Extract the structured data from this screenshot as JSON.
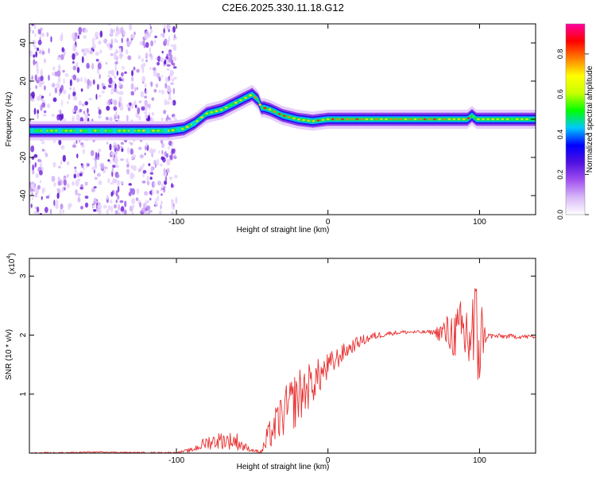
{
  "title": "C2E6.2025.330.11.18.G12",
  "chart_data": [
    {
      "type": "heatmap",
      "name": "spectrogram",
      "xlabel": "Height of straight line (km)",
      "ylabel": "Frequency (Hz)",
      "xlim": [
        -197,
        137
      ],
      "ylim": [
        -50,
        50
      ],
      "xticks": [
        -100,
        0,
        100
      ],
      "xtick_labels": [
        "-100",
        "0",
        "100"
      ],
      "yticks": [
        -40,
        -20,
        0,
        20,
        40
      ],
      "ytick_labels": [
        "-40",
        "-20",
        "0",
        "20",
        "40"
      ],
      "ridge": {
        "x": [
          -197,
          -180,
          -160,
          -140,
          -120,
          -105,
          -95,
          -88,
          -80,
          -70,
          -60,
          -50,
          -46,
          -44,
          -42,
          -38,
          -30,
          -20,
          -10,
          0,
          20,
          40,
          60,
          80,
          92,
          95,
          98,
          110,
          137
        ],
        "y": [
          -6,
          -6,
          -6,
          -6,
          -6,
          -6,
          -5,
          -2,
          3,
          5,
          9,
          13,
          10,
          6,
          6,
          5,
          2,
          0,
          -1,
          0,
          0,
          0,
          0,
          0,
          0,
          2,
          0,
          0,
          0
        ]
      },
      "colorbar": {
        "label": "Normalized spectral amplitude",
        "range": [
          0,
          0.95
        ],
        "ticks": [
          0.0,
          0.2,
          0.4,
          0.6,
          0.8
        ],
        "tick_labels": [
          "0.0",
          "0.2",
          "0.4",
          "0.6",
          "0.8"
        ],
        "colors": [
          "#ffffff",
          "#d8b8f8",
          "#a050f0",
          "#5010e0",
          "#0000ff",
          "#00c8ff",
          "#00ff00",
          "#c8ff00",
          "#ffff00",
          "#ff8000",
          "#ff0000",
          "#ff00a0"
        ]
      }
    },
    {
      "type": "line",
      "name": "snr",
      "xlabel": "Height of straight line (km)",
      "ylabel": "SNR (10 * v/v)",
      "multiplier_label": "(x10",
      "multiplier_exp": "4",
      "xlim": [
        -197,
        137
      ],
      "ylim": [
        0,
        3.3
      ],
      "xticks": [
        -100,
        0,
        100
      ],
      "xtick_labels": [
        "-100",
        "0",
        "100"
      ],
      "yticks": [
        1,
        2,
        3
      ],
      "ytick_labels": [
        "1",
        "2",
        "3"
      ],
      "color": "#e83030",
      "trend": {
        "x": [
          -197,
          -170,
          -150,
          -130,
          -100,
          -90,
          -80,
          -70,
          -60,
          -55,
          -50,
          -44,
          -42,
          -40,
          -35,
          -30,
          -20,
          -10,
          0,
          10,
          20,
          30,
          40,
          50,
          60,
          70,
          80,
          90,
          97,
          100,
          103,
          110,
          120,
          137
        ],
        "y": [
          0.0,
          0.01,
          0.02,
          0.01,
          0.01,
          0.05,
          0.18,
          0.22,
          0.2,
          0.1,
          0.05,
          0.02,
          0.1,
          0.25,
          0.45,
          0.65,
          0.95,
          1.2,
          1.45,
          1.7,
          1.88,
          1.98,
          2.03,
          2.05,
          2.05,
          2.05,
          2.03,
          2.0,
          2.0,
          1.98,
          2.0,
          1.98,
          1.98,
          1.97
        ]
      },
      "noise": {
        "x": [
          -197,
          -100,
          -90,
          -80,
          -70,
          -60,
          -56,
          -52,
          -48,
          -44,
          -40,
          -30,
          -20,
          -10,
          0,
          10,
          20,
          40,
          60,
          70,
          76,
          80,
          86,
          90,
          95,
          100,
          103,
          106,
          120,
          137
        ],
        "amp": [
          0.01,
          0.01,
          0.04,
          0.12,
          0.15,
          0.15,
          0.1,
          0.04,
          0.02,
          0.05,
          0.22,
          0.4,
          0.5,
          0.35,
          0.25,
          0.15,
          0.1,
          0.04,
          0.03,
          0.04,
          0.25,
          0.35,
          0.5,
          0.75,
          0.95,
          1.1,
          0.2,
          0.05,
          0.04,
          0.04
        ]
      }
    }
  ]
}
